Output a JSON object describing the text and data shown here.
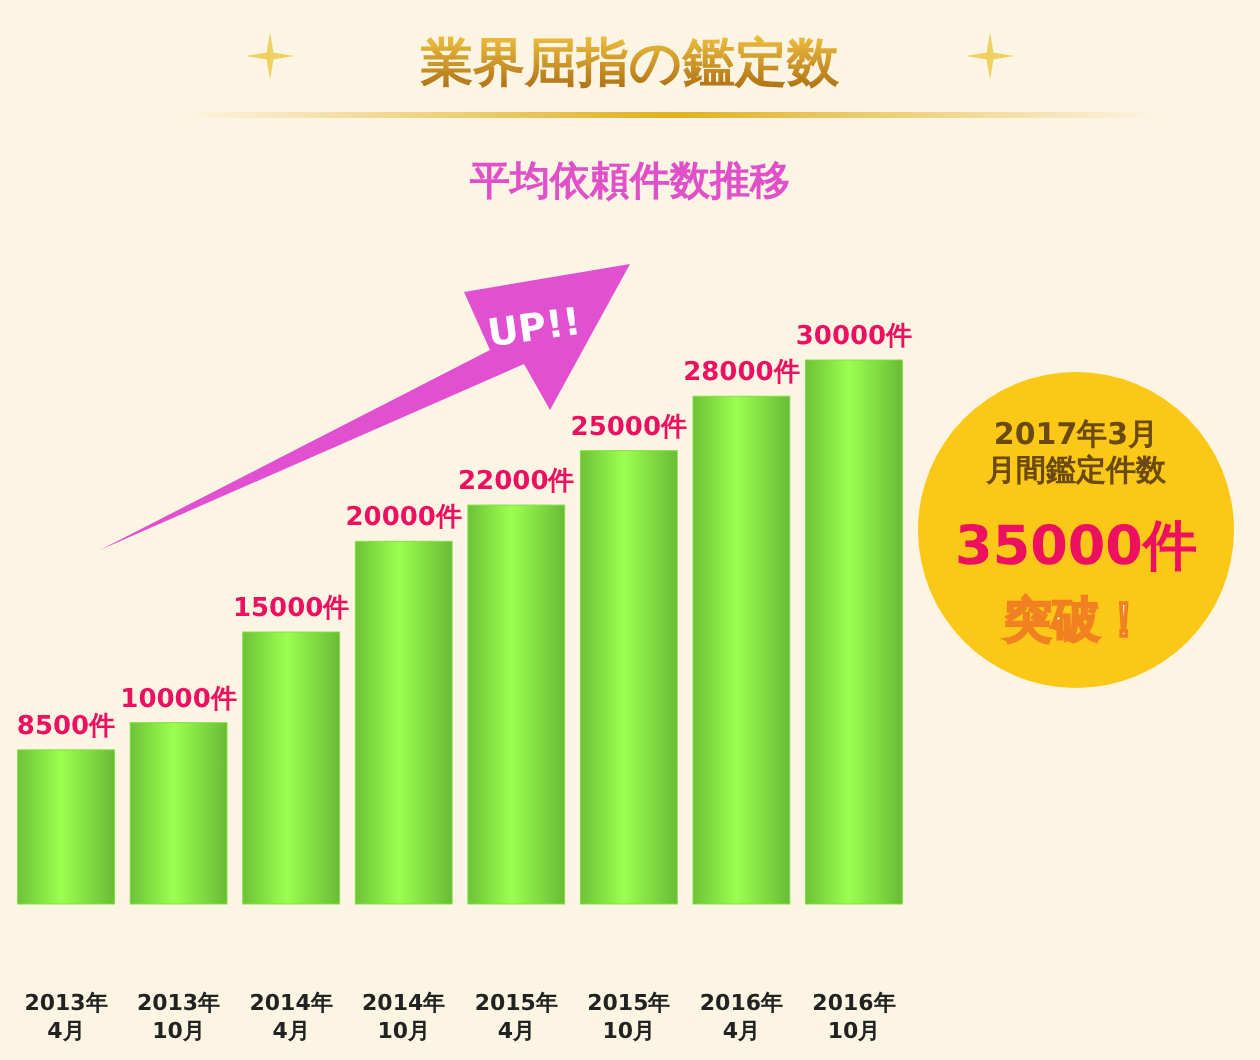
{
  "chart_data": {
    "type": "bar",
    "title": "業界屈指の鑑定数",
    "subtitle": "平均依頼件数推移",
    "categories": [
      "2013年\n4月",
      "2013年\n10月",
      "2014年\n4月",
      "2014年\n10月",
      "2015年\n4月",
      "2015年\n10月",
      "2016年\n4月",
      "2016年\n10月"
    ],
    "values": [
      8500,
      10000,
      15000,
      20000,
      22000,
      25000,
      28000,
      30000
    ],
    "value_labels": [
      "8500件",
      "10000件",
      "15000件",
      "20000件",
      "22000件",
      "25000件",
      "28000件",
      "30000件"
    ],
    "color": "#7ee040",
    "annotations": [
      "UP!!",
      "2017年3月",
      "月間鑑定件数",
      "35000件",
      "突破！"
    ]
  }
}
